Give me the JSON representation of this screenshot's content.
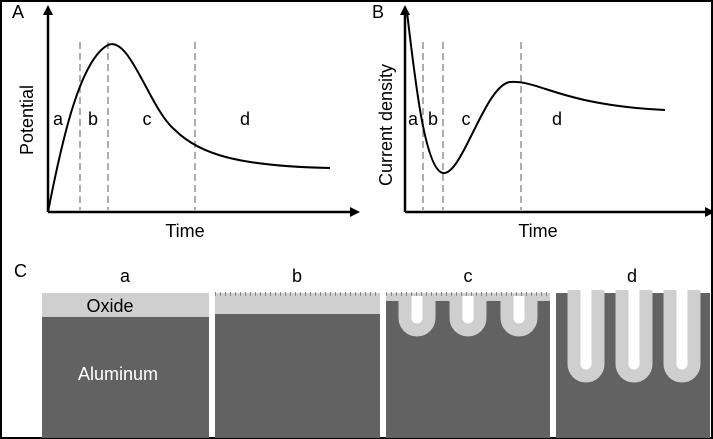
{
  "panels": {
    "A": {
      "label": "A",
      "y_axis_label": "Potential",
      "x_axis_label": "Time",
      "stages": [
        "a",
        "b",
        "c",
        "d"
      ]
    },
    "B": {
      "label": "B",
      "y_axis_label": "Current density",
      "x_axis_label": "Time",
      "stages": [
        "a",
        "b",
        "c",
        "d"
      ]
    },
    "C": {
      "label": "C",
      "stages": [
        "a",
        "b",
        "c",
        "d"
      ],
      "layer_labels": [
        "Oxide",
        "Aluminum"
      ]
    }
  }
}
